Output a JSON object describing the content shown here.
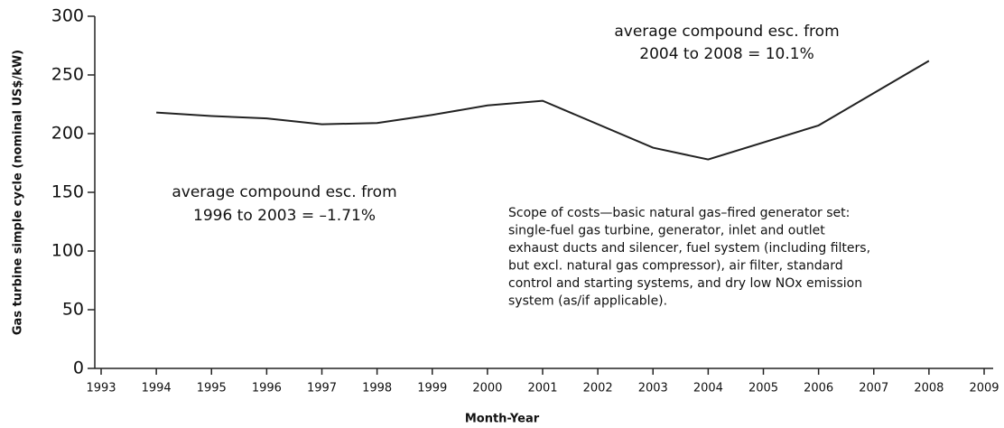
{
  "chart_data": {
    "type": "line",
    "xlabel": "Month-Year",
    "ylabel": "Gas turbine simple cycle (nominal US$/kW)",
    "x": [
      1994,
      1995,
      1996,
      1997,
      1998,
      1999,
      2000,
      2001,
      2003,
      2004,
      2006,
      2008
    ],
    "series": [
      {
        "color": "#222222",
        "values": [
          218,
          215,
          213,
          208,
          209,
          216,
          224,
          228,
          188,
          178,
          207,
          262
        ]
      }
    ],
    "xlim": [
      1993,
      2009
    ],
    "xticks": [
      1993,
      1994,
      1995,
      1996,
      1997,
      1998,
      1999,
      2000,
      2001,
      2002,
      2003,
      2004,
      2005,
      2006,
      2007,
      2008,
      2009
    ],
    "ylim": [
      0,
      300
    ],
    "yticks": [
      0,
      50,
      100,
      150,
      200,
      250,
      300
    ],
    "grid": false,
    "annotations": [
      {
        "lines": [
          "average compound esc. from",
          "2004 to 2008 = 10.1%"
        ]
      },
      {
        "lines": [
          "average compound esc. from",
          "1996 to 2003 = –1.71%"
        ]
      },
      {
        "lines": [
          "Scope of costs—basic natural gas–fired generator set:",
          "single-fuel gas turbine, generator, inlet and outlet",
          "exhaust ducts and silencer, fuel system (including filters,",
          "but excl. natural gas compressor), air filter, standard",
          "control and starting systems, and dry low NOx emission",
          "system (as/if applicable)."
        ]
      }
    ]
  }
}
